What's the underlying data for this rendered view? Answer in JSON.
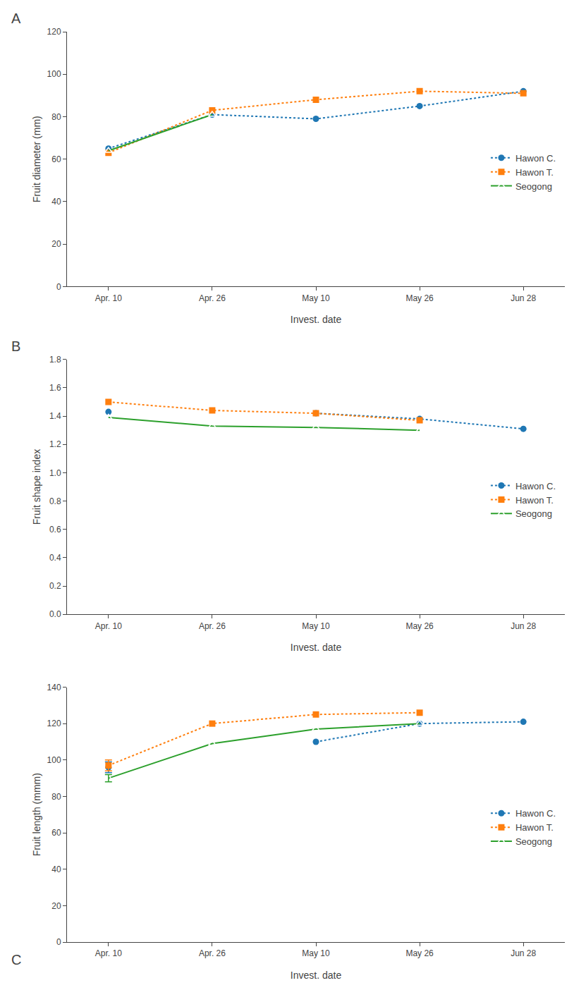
{
  "chart_data": [
    {
      "type": "line",
      "title": "A",
      "x_label": "Invest. date",
      "y_label": "Fruit diameter (mm)",
      "categories": [
        "Apr. 10",
        "Apr. 26",
        "May 10",
        "May 26",
        "Jun 28"
      ],
      "series": [
        {
          "name": "Hawon C.",
          "color": "#1f77b4",
          "marker": "circle",
          "line_style": "dot",
          "values": [
            65,
            81,
            79,
            85,
            92
          ]
        },
        {
          "name": "Hawon T.",
          "color": "#ff7f0e",
          "marker": "square",
          "line_style": "dot",
          "values": [
            63,
            83,
            88,
            92,
            91
          ]
        },
        {
          "name": "Seogong",
          "color": "#2ca02c",
          "marker": "triangle-up-open",
          "line_style": "solid",
          "values": [
            64,
            81,
            null,
            null,
            null
          ]
        }
      ],
      "ylim": [
        0,
        120
      ],
      "yticks": [
        0,
        20,
        40,
        60,
        80,
        100,
        120
      ],
      "grid": false,
      "legend": "right"
    },
    {
      "type": "line",
      "title": "B",
      "x_label": "Invest. date",
      "y_label": "Fruit shape index",
      "categories": [
        "Apr. 10",
        "Apr. 26",
        "May 10",
        "May 26",
        "Jun 28"
      ],
      "series": [
        {
          "name": "Hawon C.",
          "color": "#1f77b4",
          "marker": "circle",
          "line_style": "dot",
          "values": [
            1.43,
            null,
            1.42,
            1.38,
            1.31
          ]
        },
        {
          "name": "Hawon T.",
          "color": "#ff7f0e",
          "marker": "square",
          "line_style": "dot",
          "values": [
            1.5,
            1.44,
            1.42,
            1.37,
            null
          ]
        },
        {
          "name": "Seogong",
          "color": "#2ca02c",
          "marker": "triangle-up-open",
          "line_style": "solid",
          "values": [
            1.39,
            1.33,
            1.32,
            1.3,
            null
          ]
        }
      ],
      "ylim": [
        0,
        1.8
      ],
      "yticks": [
        {
          "value": 0,
          "label": "0.0"
        },
        0.2,
        0.4,
        0.6,
        0.8,
        {
          "value": 1.0,
          "label": "1.0"
        },
        1.2,
        1.4,
        1.6,
        1.8
      ],
      "grid": false,
      "legend": "right"
    },
    {
      "type": "line",
      "title": "C",
      "x_label": "Invest. date",
      "y_label": "Fruit length (mmm)",
      "categories": [
        "Apr. 10",
        "Apr. 26",
        "May 10",
        "May 26",
        "Jun 28"
      ],
      "series": [
        {
          "name": "Hawon C.",
          "color": "#1f77b4",
          "marker": "circle",
          "line_style": "dot",
          "values": [
            96,
            null,
            110,
            120,
            121
          ],
          "errors": [
            3,
            null,
            null,
            null,
            null
          ]
        },
        {
          "name": "Hawon T.",
          "color": "#ff7f0e",
          "marker": "square",
          "line_style": "dot",
          "values": [
            97,
            120,
            125,
            126,
            null
          ],
          "errors": [
            3,
            null,
            null,
            null,
            null
          ]
        },
        {
          "name": "Seogong",
          "color": "#2ca02c",
          "marker": "triangle-up-open",
          "line_style": "solid",
          "values": [
            90,
            109,
            117,
            120,
            null
          ],
          "errors": [
            2,
            null,
            null,
            null,
            null
          ]
        }
      ],
      "ylim": [
        0,
        140
      ],
      "yticks": [
        0,
        20,
        40,
        60,
        80,
        100,
        120,
        140
      ],
      "grid": false,
      "legend": "right"
    }
  ]
}
